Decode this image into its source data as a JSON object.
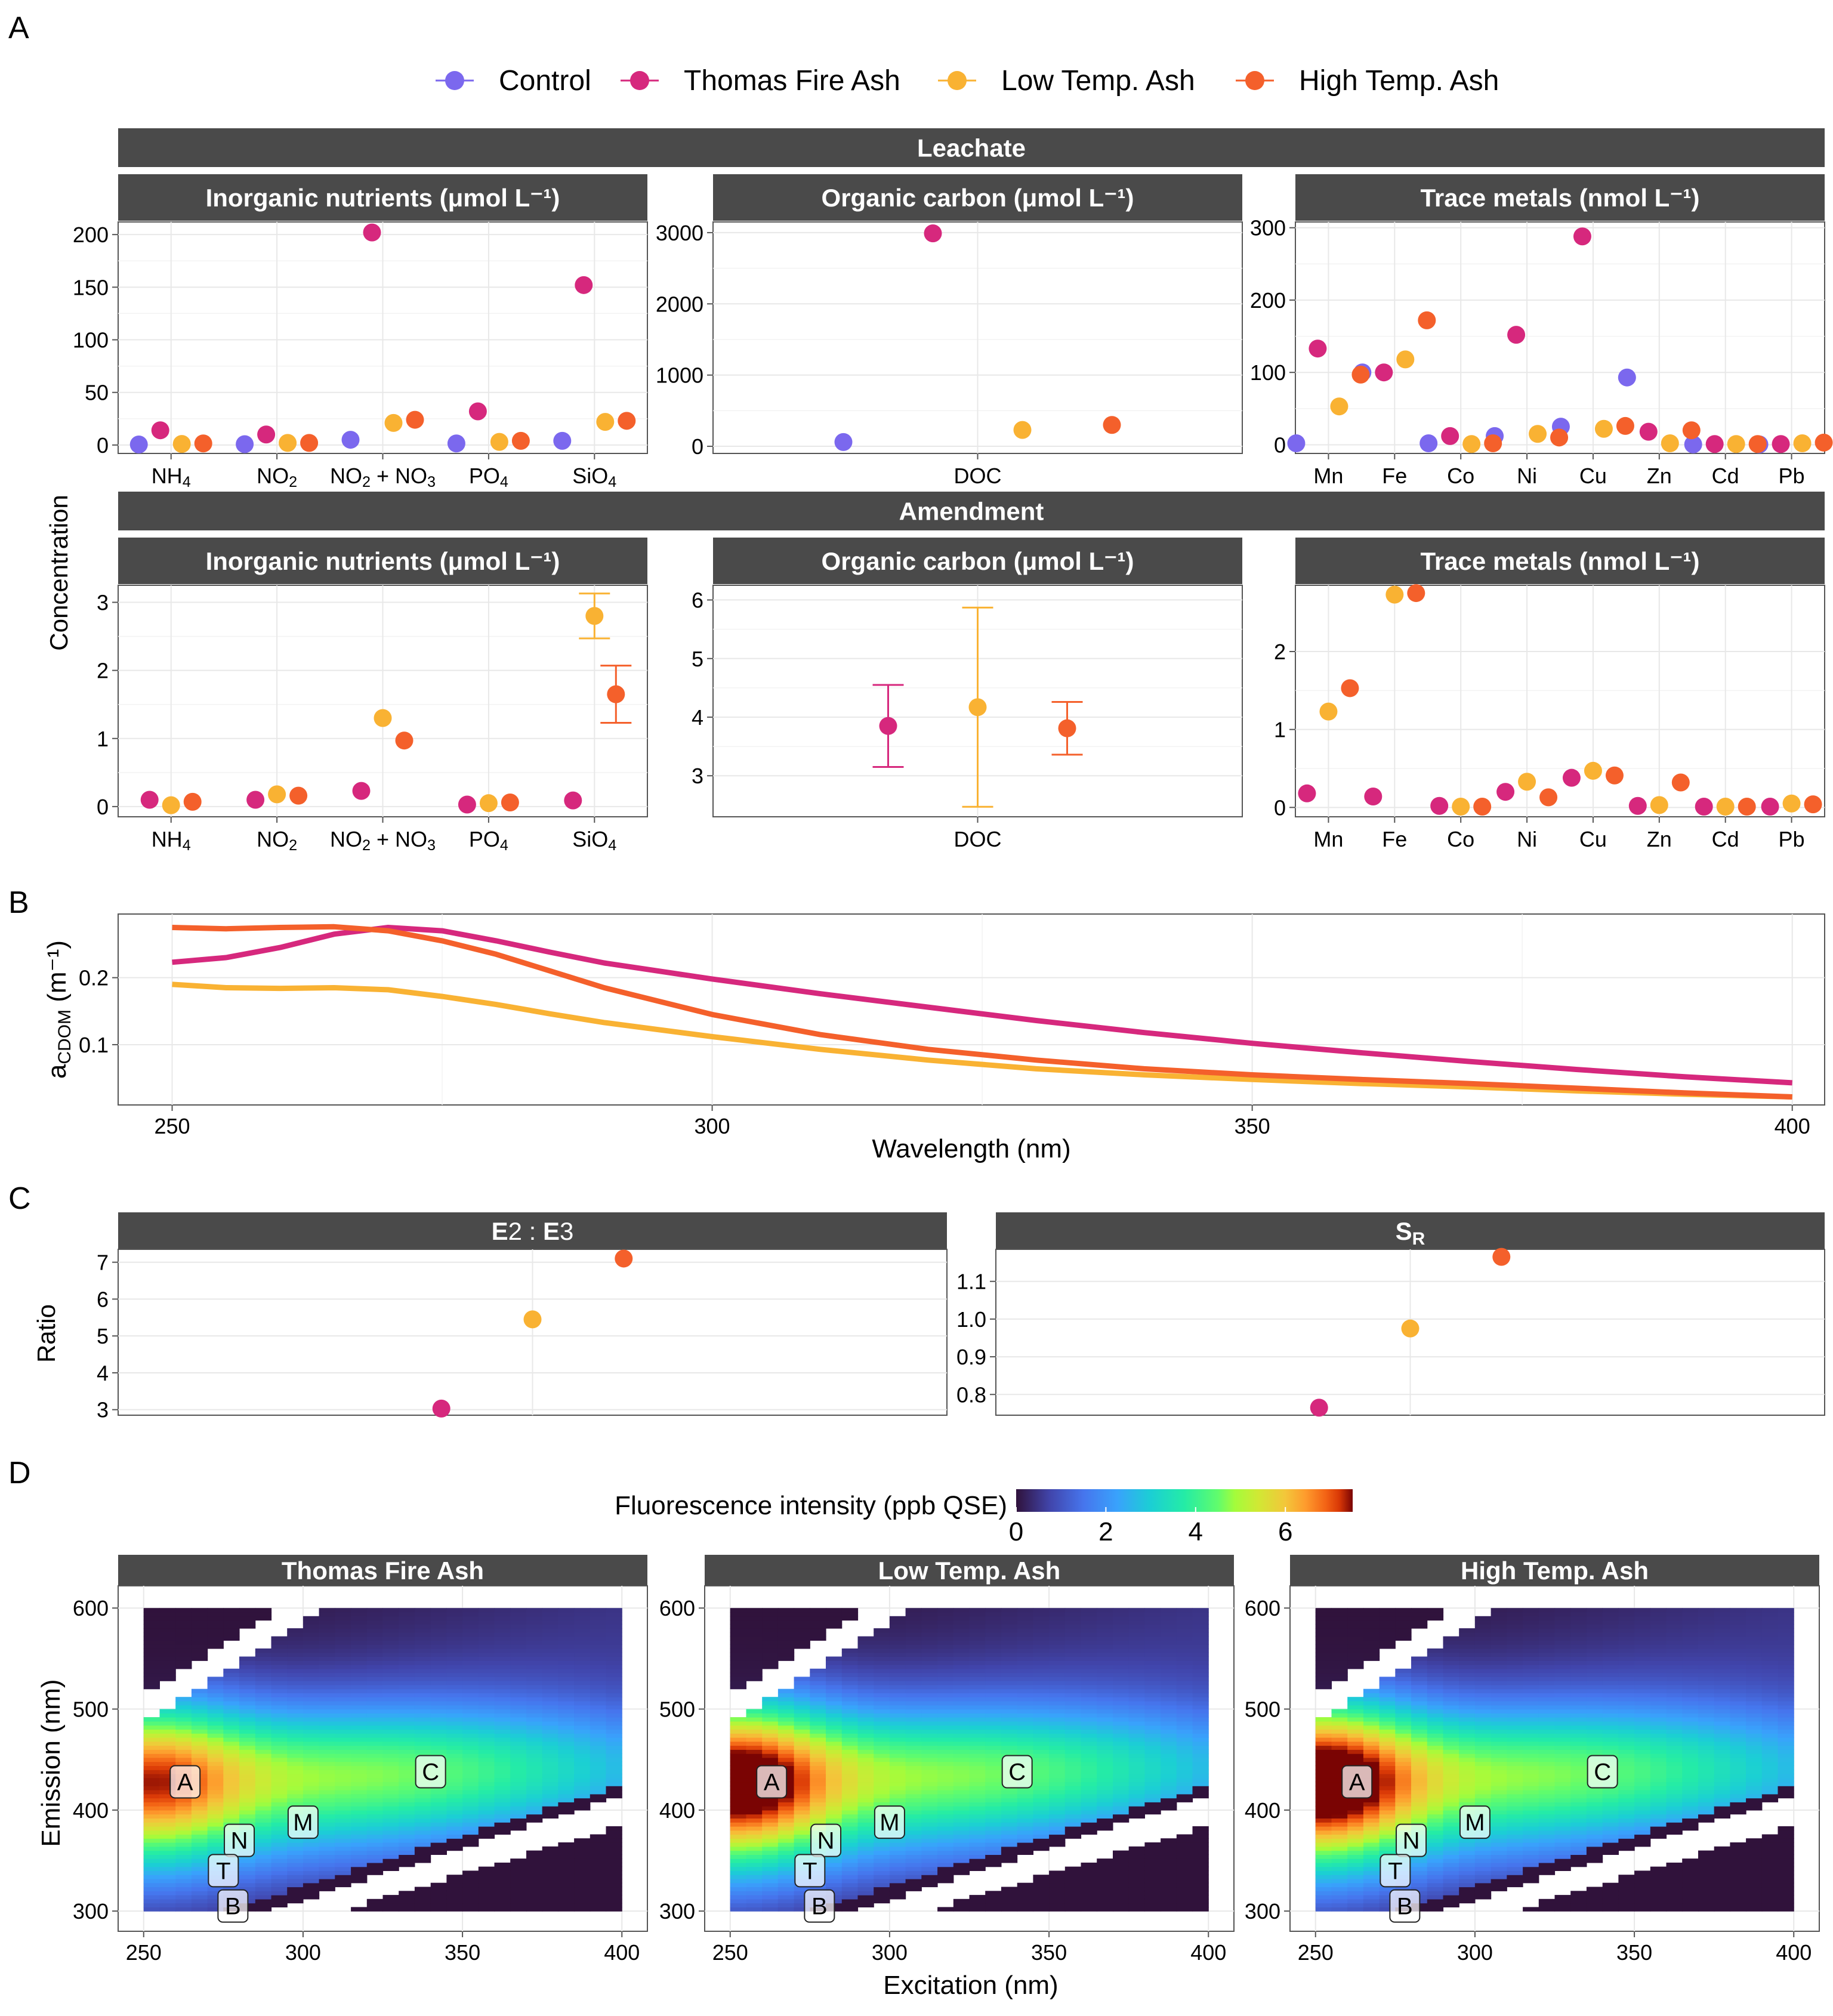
{
  "panel_letters": [
    "A",
    "B",
    "C",
    "D"
  ],
  "colors": {
    "Control": "#7B68EE",
    "Thomas Fire Ash": "#D6287D",
    "Low Temp. Ash": "#F9B233",
    "High Temp. Ash": "#F4602B",
    "strip_bg": "#4a4a4a",
    "strip_text": "#ffffff",
    "grid": "#e8e8e8"
  },
  "legend": [
    "Control",
    "Thomas Fire Ash",
    "Low Temp. Ash",
    "High Temp. Ash"
  ],
  "panelA": {
    "y_label": "Concentration",
    "rows": [
      {
        "title": "Leachate",
        "facets": [
          {
            "title": "Inorganic nutrients (μmol L⁻¹)",
            "categories": [
              "NH₄",
              "NO₂",
              "NO₂ + NO₃",
              "PO₄",
              "SiO₄"
            ],
            "ylim": [
              -8,
              212
            ],
            "yticks": [
              0,
              50,
              100,
              150,
              200
            ],
            "series": [
              {
                "name": "Control",
                "values": [
                  0.5,
                  0.8,
                  5,
                  1.5,
                  4
                ]
              },
              {
                "name": "Thomas Fire Ash",
                "values": [
                  14,
                  10,
                  202,
                  32,
                  152
                ]
              },
              {
                "name": "Low Temp. Ash",
                "values": [
                  1,
                  2,
                  21,
                  3,
                  22
                ]
              },
              {
                "name": "High Temp. Ash",
                "values": [
                  1.5,
                  2,
                  24,
                  4,
                  23
                ]
              }
            ]
          },
          {
            "title": "Organic carbon (μmol L⁻¹)",
            "categories": [
              "DOC"
            ],
            "ylim": [
              -100,
              3150
            ],
            "yticks": [
              0,
              1000,
              2000,
              3000
            ],
            "series": [
              {
                "name": "Control",
                "values": [
                  60
                ]
              },
              {
                "name": "Thomas Fire Ash",
                "values": [
                  2990
                ]
              },
              {
                "name": "Low Temp. Ash",
                "values": [
                  230
                ]
              },
              {
                "name": "High Temp. Ash",
                "values": [
                  300
                ]
              }
            ]
          },
          {
            "title": "Trace metals (nmol L⁻¹)",
            "categories": [
              "Mn",
              "Fe",
              "Co",
              "Ni",
              "Cu",
              "Zn",
              "Cd",
              "Pb"
            ],
            "ylim": [
              -12,
              308
            ],
            "yticks": [
              0,
              100,
              200,
              300
            ],
            "series": [
              {
                "name": "Control",
                "values": [
                  2,
                  100,
                  2,
                  12,
                  25,
                  93,
                  0.5,
                  0.5
                ]
              },
              {
                "name": "Thomas Fire Ash",
                "values": [
                  133,
                  100,
                  12,
                  152,
                  288,
                  18,
                  1,
                  1
                ]
              },
              {
                "name": "Low Temp. Ash",
                "values": [
                  53,
                  118,
                  1,
                  15,
                  22,
                  2,
                  1,
                  2
                ]
              },
              {
                "name": "High Temp. Ash",
                "values": [
                  97,
                  172,
                  2,
                  10,
                  26,
                  20,
                  1,
                  3
                ]
              }
            ]
          }
        ]
      },
      {
        "title": "Amendment",
        "facets": [
          {
            "title": "Inorganic nutrients (μmol L⁻¹)",
            "categories": [
              "NH₄",
              "NO₂",
              "NO₂ + NO₃",
              "PO₄",
              "SiO₄"
            ],
            "ylim": [
              -0.15,
              3.25
            ],
            "yticks": [
              0,
              1,
              2,
              3
            ],
            "series": [
              {
                "name": "Thomas Fire Ash",
                "values": [
                  0.1,
                  0.1,
                  0.23,
                  0.03,
                  0.09
                ]
              },
              {
                "name": "Low Temp. Ash",
                "values": [
                  0.02,
                  0.18,
                  1.3,
                  0.05,
                  2.8
                ],
                "err": [
                  0,
                  0,
                  0,
                  0,
                  0.33
                ]
              },
              {
                "name": "High Temp. Ash",
                "values": [
                  0.07,
                  0.16,
                  0.97,
                  0.06,
                  1.65
                ],
                "err": [
                  0,
                  0,
                  0,
                  0,
                  0.42
                ]
              }
            ]
          },
          {
            "title": "Organic carbon (μmol L⁻¹)",
            "categories": [
              "DOC"
            ],
            "ylim": [
              2.3,
              6.25
            ],
            "yticks": [
              3,
              4,
              5,
              6
            ],
            "series": [
              {
                "name": "Thomas Fire Ash",
                "values": [
                  3.85
                ],
                "err": [
                  0.7
                ]
              },
              {
                "name": "Low Temp. Ash",
                "values": [
                  4.17
                ],
                "err": [
                  1.7
                ]
              },
              {
                "name": "High Temp. Ash",
                "values": [
                  3.81
                ],
                "err": [
                  0.45
                ]
              }
            ]
          },
          {
            "title": "Trace metals (nmol L⁻¹)",
            "categories": [
              "Mn",
              "Fe",
              "Co",
              "Ni",
              "Cu",
              "Zn",
              "Cd",
              "Pb"
            ],
            "ylim": [
              -0.12,
              2.85
            ],
            "yticks": [
              0,
              1,
              2
            ],
            "series": [
              {
                "name": "Thomas Fire Ash",
                "values": [
                  0.18,
                  0.14,
                  0.02,
                  0.2,
                  0.38,
                  0.02,
                  0.01,
                  0.01
                ]
              },
              {
                "name": "Low Temp. Ash",
                "values": [
                  1.23,
                  2.73,
                  0.01,
                  0.33,
                  0.47,
                  0.03,
                  0.01,
                  0.05
                ]
              },
              {
                "name": "High Temp. Ash",
                "values": [
                  1.53,
                  2.75,
                  0.01,
                  0.13,
                  0.41,
                  0.32,
                  0.01,
                  0.04
                ]
              }
            ]
          }
        ]
      }
    ]
  },
  "panelB": {
    "xlabel": "Wavelength (nm)",
    "ylabel": "a",
    "ylabel_sub": "CDOM",
    "ylabel_unit": "(m⁻¹)",
    "xlim": [
      245,
      403
    ],
    "ylim": [
      0.01,
      0.295
    ],
    "xticks": [
      250,
      300,
      350,
      400
    ],
    "yticks": [
      0.1,
      0.2
    ],
    "chart_data": {
      "type": "line",
      "x": [
        250,
        255,
        260,
        265,
        270,
        275,
        280,
        285,
        290,
        300,
        310,
        320,
        330,
        340,
        350,
        360,
        370,
        380,
        390,
        400
      ],
      "series": [
        {
          "name": "Thomas Fire Ash",
          "values": [
            0.223,
            0.23,
            0.245,
            0.265,
            0.275,
            0.27,
            0.255,
            0.238,
            0.222,
            0.198,
            0.176,
            0.156,
            0.136,
            0.118,
            0.102,
            0.088,
            0.075,
            0.063,
            0.052,
            0.043
          ]
        },
        {
          "name": "Low Temp. Ash",
          "values": [
            0.19,
            0.185,
            0.184,
            0.185,
            0.182,
            0.172,
            0.16,
            0.146,
            0.133,
            0.112,
            0.093,
            0.077,
            0.064,
            0.055,
            0.048,
            0.042,
            0.037,
            0.031,
            0.026,
            0.022
          ]
        },
        {
          "name": "High Temp. Ash",
          "values": [
            0.275,
            0.273,
            0.275,
            0.276,
            0.27,
            0.255,
            0.235,
            0.21,
            0.185,
            0.145,
            0.115,
            0.093,
            0.077,
            0.064,
            0.055,
            0.048,
            0.042,
            0.035,
            0.028,
            0.022
          ]
        }
      ]
    }
  },
  "panelC": {
    "ylabel": "Ratio",
    "facets": [
      {
        "title_parts": [
          "E",
          "2 : ",
          "E",
          "3"
        ],
        "ylim": [
          2.85,
          7.35
        ],
        "yticks": [
          3,
          4,
          5,
          6,
          7
        ],
        "values": [
          {
            "name": "Thomas Fire Ash",
            "x": 0.39,
            "value": 3.03
          },
          {
            "name": "Low Temp. Ash",
            "x": 0.5,
            "value": 5.45
          },
          {
            "name": "High Temp. Ash",
            "x": 0.61,
            "value": 7.1
          }
        ]
      },
      {
        "title": "S",
        "title_sub": "R",
        "ylim": [
          0.745,
          1.185
        ],
        "yticks": [
          0.8,
          0.9,
          1.0,
          1.1
        ],
        "ytick_labels": [
          "0.8",
          "0.9",
          "1.0",
          "1.1"
        ],
        "values": [
          {
            "name": "Thomas Fire Ash",
            "x": 0.39,
            "value": 0.765
          },
          {
            "name": "Low Temp. Ash",
            "x": 0.5,
            "value": 0.975
          },
          {
            "name": "High Temp. Ash",
            "x": 0.61,
            "value": 1.165
          }
        ]
      }
    ]
  },
  "panelD": {
    "colorbar_label": "Fluorescence intensity (ppb QSE)",
    "colorbar_ticks": [
      0,
      2,
      4,
      6
    ],
    "colorbar_range": [
      0,
      7.5
    ],
    "xlabel": "Excitation (nm)",
    "ylabel": "Emission (nm)",
    "xlim": [
      242,
      408
    ],
    "ylim": [
      280,
      622
    ],
    "xticks": [
      250,
      300,
      350,
      400
    ],
    "yticks": [
      300,
      400,
      500,
      600
    ],
    "facets": [
      {
        "title": "Thomas Fire Ash",
        "peak_scale": 0.78
      },
      {
        "title": "Low Temp. Ash",
        "peak_scale": 1.0
      },
      {
        "title": "High Temp. Ash",
        "peak_scale": 1.05
      }
    ],
    "peak_labels": [
      {
        "label": "A",
        "ex": 263,
        "em": 428
      },
      {
        "label": "C",
        "ex": 340,
        "em": 438
      },
      {
        "label": "M",
        "ex": 300,
        "em": 388
      },
      {
        "label": "N",
        "ex": 280,
        "em": 370
      },
      {
        "label": "T",
        "ex": 275,
        "em": 340
      },
      {
        "label": "B",
        "ex": 278,
        "em": 305
      }
    ]
  }
}
